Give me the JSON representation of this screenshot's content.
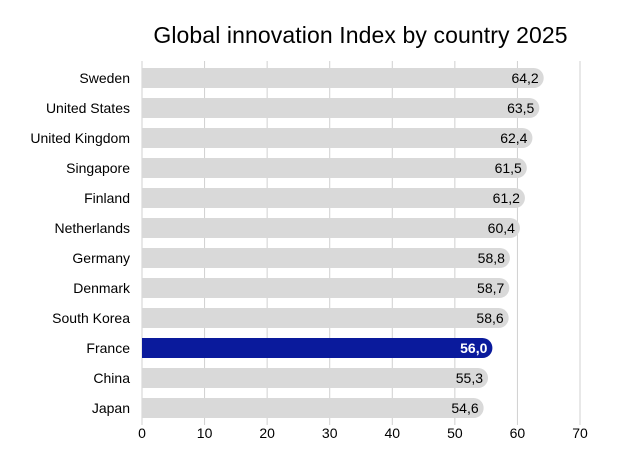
{
  "chart_data": {
    "type": "bar",
    "orientation": "horizontal",
    "title": "Global innovation Index by country 2025",
    "xlabel": "",
    "ylabel": "",
    "categories": [
      "Sweden",
      "United States",
      "United Kingdom",
      "Singapore",
      "Finland",
      "Netherlands",
      "Germany",
      "Denmark",
      "South Korea",
      "France",
      "China",
      "Japan"
    ],
    "values": [
      64.2,
      63.5,
      62.4,
      61.5,
      61.2,
      60.4,
      58.8,
      58.7,
      58.6,
      56.0,
      55.3,
      54.6
    ],
    "value_labels": [
      "64,2",
      "63,5",
      "62,4",
      "61,5",
      "61,2",
      "60,4",
      "58,8",
      "58,7",
      "58,6",
      "56,0",
      "55,3",
      "54,6"
    ],
    "highlight": "France",
    "xlim": [
      0,
      70
    ],
    "xticks": [
      0,
      10,
      20,
      30,
      40,
      50,
      60,
      70
    ],
    "grid": true,
    "legend": "none",
    "colors": {
      "bar": "#d9d9d9",
      "highlight": "#0a1a9c",
      "grid": "#d0d0d0",
      "text": "#000000",
      "highlight_text": "#ffffff"
    }
  }
}
